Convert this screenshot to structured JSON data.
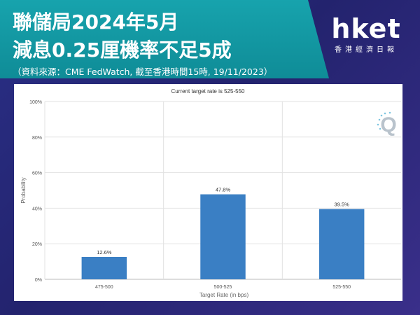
{
  "header": {
    "title_line1": "聯儲局2024年5月",
    "title_line2": "減息0.25厘機率不足5成",
    "source_note": "（資料來源：CME FedWatch, 截至香港時間15時, 19/11/2023）"
  },
  "logo": {
    "main": "hket",
    "sub": "香港經濟日報"
  },
  "watermark": {
    "icon": "q-logo-icon",
    "text": "Q"
  },
  "colors": {
    "banner": "#119aa4",
    "bar": "#3a7fc4",
    "background": "#262a7a"
  },
  "chart_data": {
    "type": "bar",
    "title": "Current target rate is 525-550",
    "xlabel": "Target Rate (in bps)",
    "ylabel": "Probability",
    "categories": [
      "475-500",
      "500-525",
      "525-550"
    ],
    "values": [
      12.6,
      47.8,
      39.5
    ],
    "data_labels": [
      "12.6%",
      "47.8%",
      "39.5%"
    ],
    "yticks": [
      "0%",
      "20%",
      "40%",
      "60%",
      "80%",
      "100%"
    ],
    "ytick_values": [
      0,
      20,
      40,
      60,
      80,
      100
    ],
    "ylim": [
      0,
      100
    ],
    "grid": true,
    "legend": "none"
  }
}
